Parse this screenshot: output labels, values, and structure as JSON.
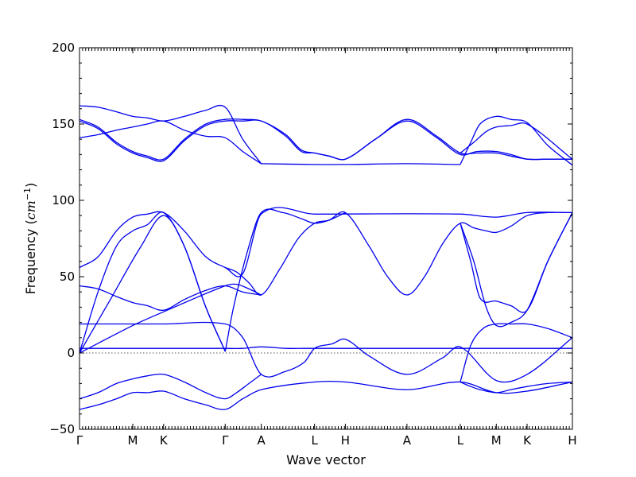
{
  "chart_data": {
    "type": "line",
    "title": "",
    "xlabel": "Wave vector",
    "ylabel_main": "Frequency (",
    "ylabel_unit": "cm",
    "ylabel_exp": "−1",
    "ylabel_close": ")",
    "ylim": [
      -50,
      200
    ],
    "yticks": [
      -50,
      0,
      50,
      100,
      150,
      200
    ],
    "ytick_labels": [
      "−50",
      "0",
      "50",
      "100",
      "150",
      "200"
    ],
    "xlim": [
      0,
      16
    ],
    "high_symmetry": [
      {
        "label": "Γ",
        "x": 0
      },
      {
        "label": "M",
        "x": 1.73
      },
      {
        "label": "K",
        "x": 2.73
      },
      {
        "label": "Γ",
        "x": 4.73
      },
      {
        "label": "A",
        "x": 5.9
      },
      {
        "label": "L",
        "x": 7.63
      },
      {
        "label": "H",
        "x": 8.63
      },
      {
        "label": "A",
        "x": 10.63
      },
      {
        "label": "L",
        "x": 12.36
      },
      {
        "label": "M",
        "x": 13.53
      },
      {
        "label": "K",
        "x": 14.53
      },
      {
        "label": "H",
        "x": 16
      }
    ],
    "reference_line": {
      "y": 0,
      "style": "dotted"
    },
    "line_color": "#0000ee",
    "series": [
      {
        "x": [
          0,
          0.6,
          1.2,
          1.73,
          2.2,
          2.73,
          3.4,
          4.1,
          4.73,
          5.3,
          5.9
        ],
        "y": [
          162,
          161,
          158,
          155,
          154,
          152,
          155,
          159,
          161,
          140,
          124
        ]
      },
      {
        "x": [
          0,
          0.6,
          1.2,
          1.73,
          2.2,
          2.73,
          3.4,
          4.1,
          4.73,
          5.3,
          5.9,
          6.7,
          7.2,
          7.63,
          8.1,
          8.63,
          9.6,
          10.63,
          11.6,
          12.36,
          12.9,
          13.53,
          14.0,
          14.53,
          15.2,
          16
        ],
        "y": [
          153,
          148,
          138,
          132,
          129,
          127,
          140,
          150,
          153,
          153,
          152,
          143,
          133,
          131,
          129,
          127,
          140,
          153,
          142,
          131,
          131,
          131,
          129,
          127,
          127,
          127
        ]
      },
      {
        "x": [
          0,
          0.6,
          1.2,
          1.73,
          2.2,
          2.73,
          3.4,
          4.1,
          4.73,
          5.3,
          5.9,
          6.7,
          7.2,
          7.63,
          8.1,
          8.63,
          9.6,
          10.63,
          11.6,
          12.36,
          12.9,
          13.53,
          14.0,
          14.53,
          15.2,
          16
        ],
        "y": [
          152,
          147,
          137,
          131,
          128,
          126,
          139,
          149,
          152,
          152,
          152,
          142,
          132,
          131,
          129,
          127,
          140,
          152,
          141,
          130,
          132,
          132,
          130,
          127,
          127,
          127
        ]
      },
      {
        "x": [
          0,
          0.6,
          1.2,
          1.73,
          2.2,
          2.73,
          3.4,
          4.1,
          4.73,
          5.3,
          5.9
        ],
        "y": [
          141,
          143,
          146,
          148,
          150,
          152,
          146,
          142,
          141,
          132,
          124
        ]
      },
      {
        "x": [
          5.9,
          7.63,
          8.63,
          10.63,
          12.36
        ],
        "y": [
          124,
          123.5,
          123.5,
          124,
          123.5
        ]
      },
      {
        "x": [
          12.36,
          12.7,
          13.0,
          13.53,
          14.0,
          14.53,
          15.2,
          16
        ],
        "y": [
          123.5,
          138,
          150,
          155,
          153,
          151,
          136,
          123
        ]
      },
      {
        "x": [
          12.36,
          12.8,
          13.2,
          13.53,
          14.0,
          14.53,
          16
        ],
        "y": [
          131,
          138,
          145,
          148,
          149,
          150,
          127
        ]
      },
      {
        "x": [
          0,
          0.6,
          1.2,
          1.73,
          2.2,
          2.73,
          3.4,
          4.1,
          4.73,
          5.3,
          5.9,
          7.63,
          12.36,
          13.53,
          14.53,
          16
        ],
        "y": [
          56,
          63,
          80,
          89,
          91,
          92,
          80,
          63,
          56,
          52,
          91,
          91,
          91,
          89,
          92,
          92
        ]
      },
      {
        "x": [
          0,
          0.6,
          1.2,
          1.73,
          2.2,
          2.73,
          3.4,
          4.1,
          4.73
        ],
        "y": [
          0,
          40,
          70,
          80,
          84,
          92,
          70,
          30,
          1
        ]
      },
      {
        "x": [
          0,
          1.0,
          2.0,
          2.73,
          3.4,
          4.1,
          4.73
        ],
        "y": [
          0,
          35,
          70,
          90,
          70,
          30,
          1
        ]
      },
      {
        "x": [
          4.73,
          5.0,
          5.5,
          5.9,
          6.6,
          7.2,
          7.63,
          8.1,
          8.63,
          9.4,
          10.0,
          10.63,
          11.2,
          11.8,
          12.36,
          12.8,
          13.2,
          13.53,
          14.0,
          14.53,
          15.2,
          16
        ],
        "y": [
          1,
          30,
          70,
          92,
          92,
          88,
          85,
          87,
          92,
          70,
          50,
          38,
          50,
          72,
          85,
          82,
          80,
          79,
          83,
          90,
          92,
          92
        ]
      },
      {
        "x": [
          4.73,
          5.1,
          5.5,
          5.9,
          6.5,
          7.1,
          7.63,
          8.1,
          8.63
        ],
        "y": [
          56,
          53,
          46,
          38,
          55,
          75,
          85,
          87,
          92
        ]
      },
      {
        "x": [
          0,
          0.6,
          1.2,
          1.73,
          2.2,
          2.73,
          3.4,
          4.1,
          4.73,
          5.3,
          5.9
        ],
        "y": [
          44,
          42,
          37,
          33,
          31,
          28,
          35,
          41,
          44,
          40,
          38
        ]
      },
      {
        "x": [
          0,
          1.73,
          2.73,
          4.73,
          5.1,
          5.5,
          5.9
        ],
        "y": [
          0,
          18,
          27,
          44,
          45,
          42,
          38
        ]
      },
      {
        "x": [
          12.36,
          12.7,
          13.0,
          13.53,
          14.0,
          14.53,
          15.2,
          16
        ],
        "y": [
          85,
          60,
          36,
          34,
          31,
          28,
          60,
          92
        ]
      },
      {
        "x": [
          12.36,
          12.8,
          13.2,
          13.53,
          14.0,
          14.53,
          15.2,
          16
        ],
        "y": [
          85,
          60,
          30,
          18,
          20,
          28,
          60,
          92
        ]
      },
      {
        "x": [
          0,
          1.73,
          2.73,
          4.73,
          5.3,
          5.9,
          6.7,
          7.3,
          7.63,
          8.2,
          8.63,
          9.4,
          10.63,
          11.8,
          12.36,
          13.53,
          14.53,
          16
        ],
        "y": [
          19,
          19,
          19,
          19,
          10,
          -14,
          -12,
          -6,
          3,
          6,
          9,
          -2,
          -14,
          -3,
          4,
          -18,
          -14,
          10
        ]
      },
      {
        "x": [
          0,
          1.73,
          2.73,
          4.73,
          5.3,
          5.9,
          6.7,
          7.3,
          7.63,
          8.2,
          8.63,
          9.4,
          10.63,
          11.8,
          12.36,
          13.53,
          14.53,
          16
        ],
        "y": [
          3,
          3,
          3,
          3,
          3,
          4,
          3,
          3,
          3,
          3,
          3,
          3,
          3,
          3,
          3,
          3,
          3,
          3
        ]
      },
      {
        "x": [
          0,
          0.6,
          1.2,
          1.73,
          2.2,
          2.73,
          3.4,
          4.1,
          4.73,
          5.1,
          5.5,
          5.9
        ],
        "y": [
          -30,
          -26,
          -20,
          -17,
          -15,
          -14,
          -19,
          -26,
          -30,
          -26,
          -20,
          -14
        ]
      },
      {
        "x": [
          0,
          0.6,
          1.2,
          1.73,
          2.2,
          2.73,
          3.4,
          4.1,
          4.73,
          5.3,
          5.9,
          7.63,
          8.63,
          10.63,
          12.36,
          13.53,
          14.53,
          16
        ],
        "y": [
          -37,
          -34,
          -30,
          -26,
          -26,
          -25,
          -30,
          -34,
          -37,
          -30,
          -24,
          -19,
          -19,
          -24,
          -19,
          -26,
          -25,
          -19
        ]
      },
      {
        "x": [
          12.36,
          12.7,
          13.0,
          13.53,
          14.0,
          14.53,
          15.2,
          16
        ],
        "y": [
          -19,
          -22,
          -24,
          -26,
          -24,
          -22,
          -20,
          -19
        ]
      },
      {
        "x": [
          12.36,
          12.7,
          13.1,
          13.53,
          14.0,
          14.53,
          15.2,
          16
        ],
        "y": [
          -19,
          5,
          16,
          19,
          19,
          19,
          16,
          10
        ]
      }
    ]
  }
}
